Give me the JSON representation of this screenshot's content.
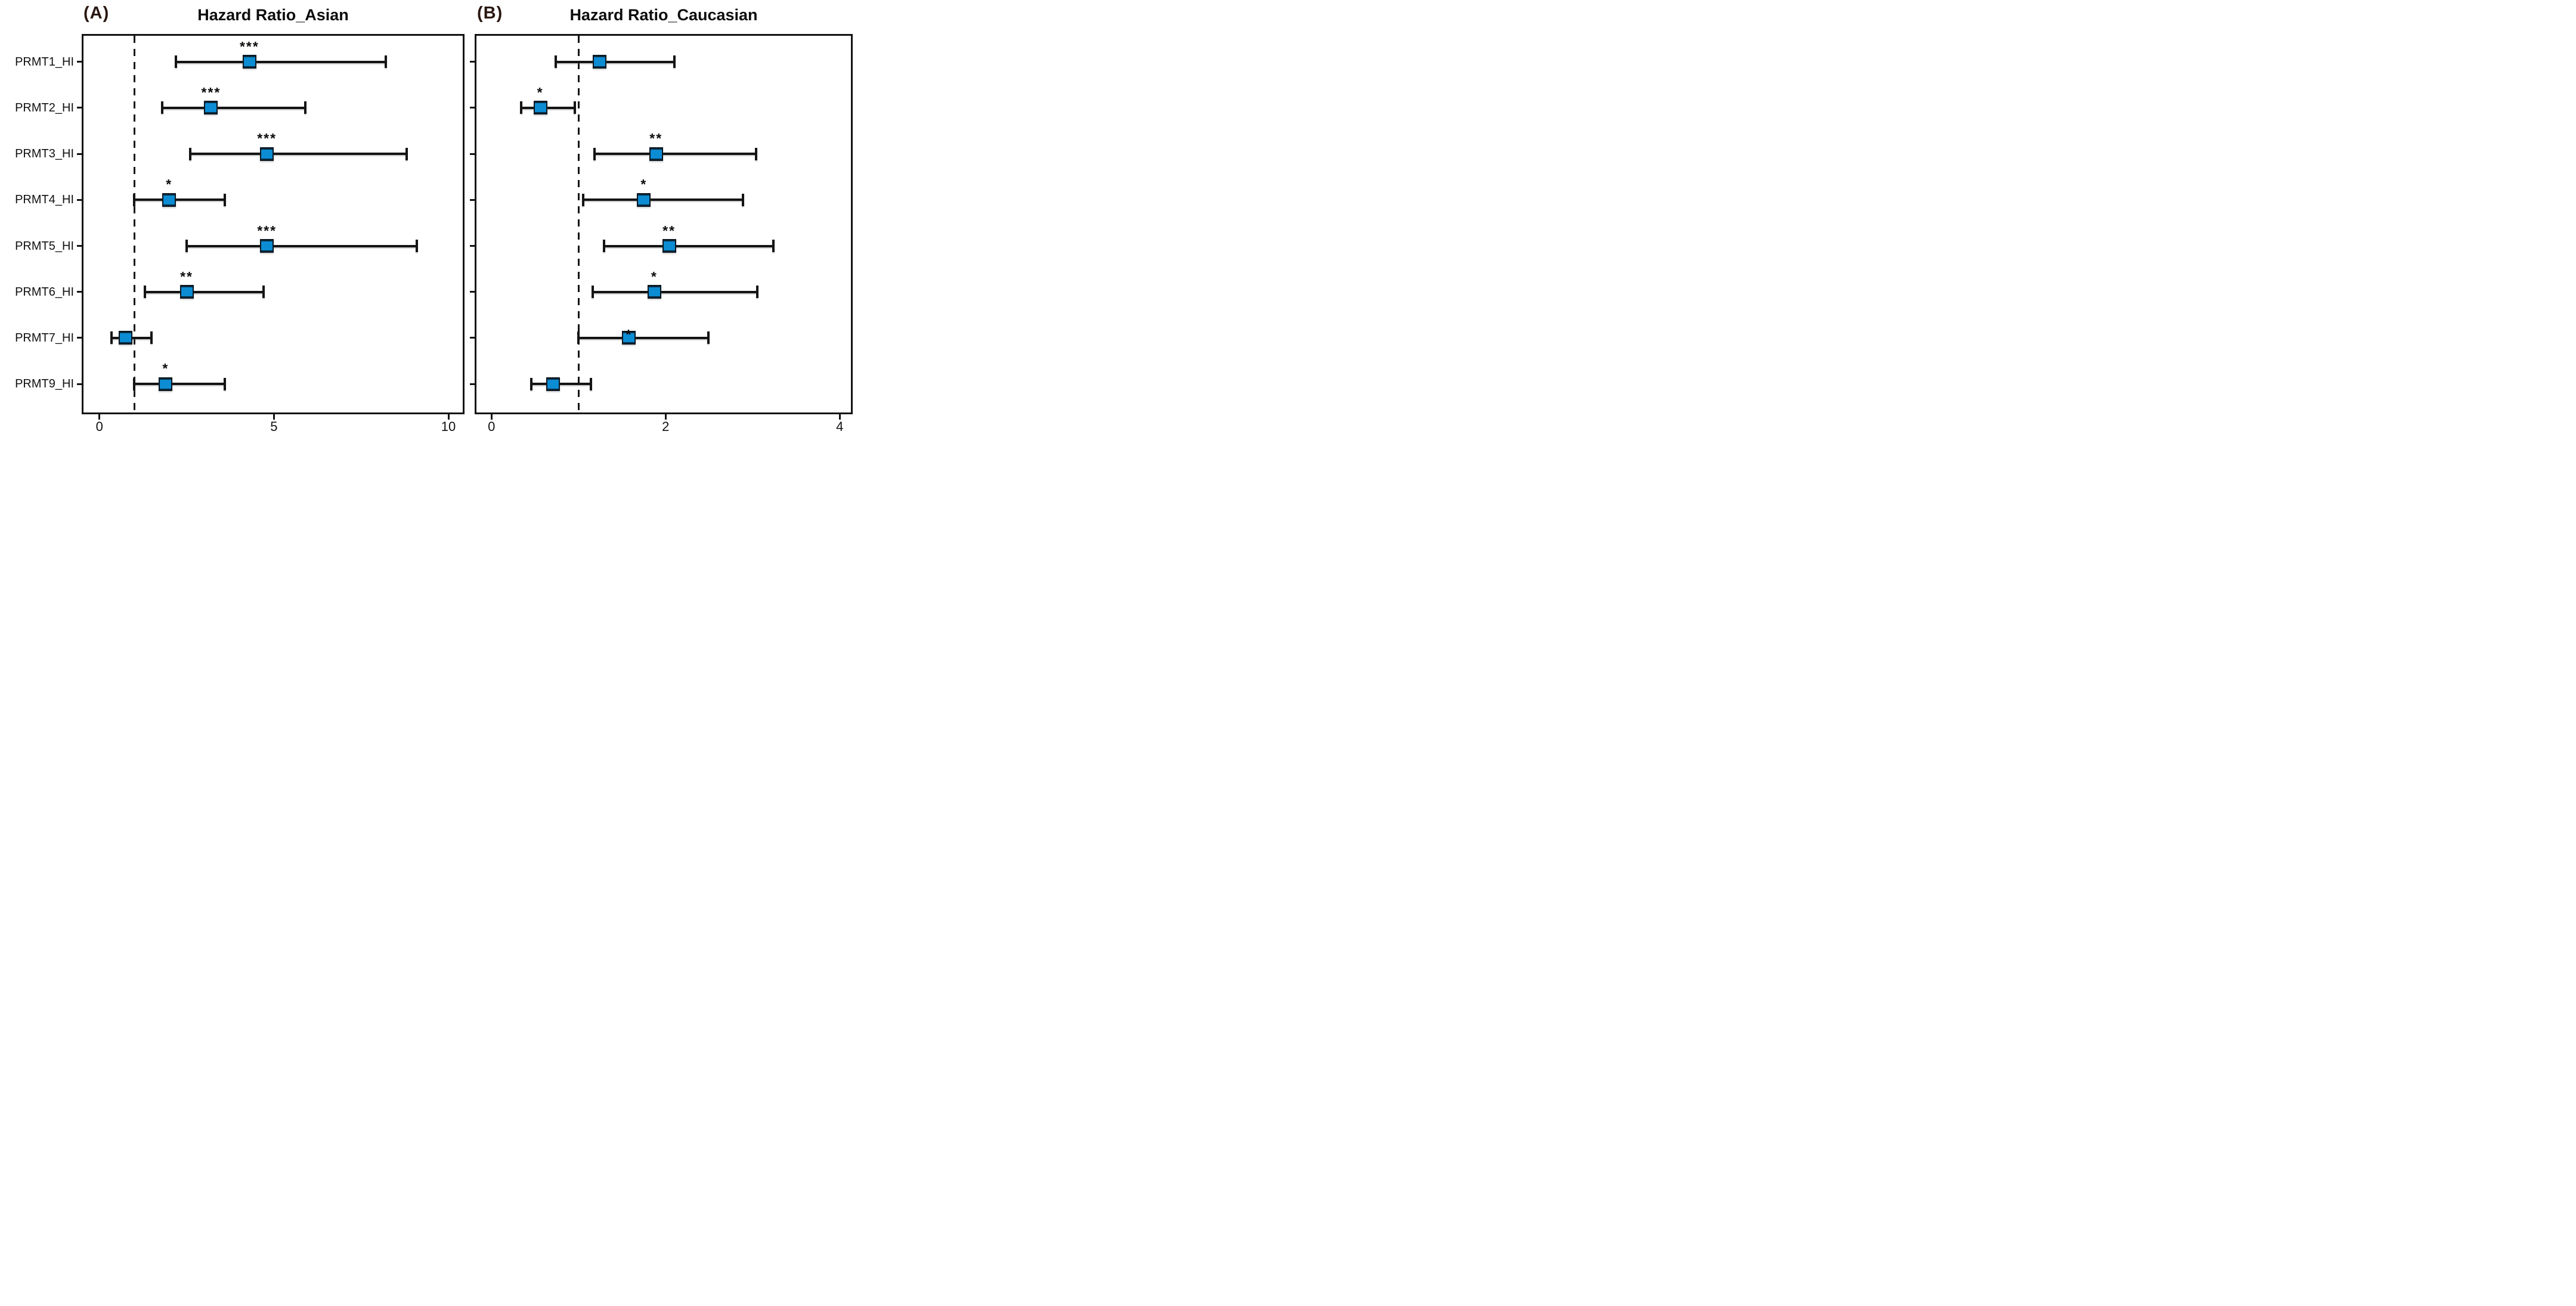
{
  "figure": {
    "kind": "forest plot of hazard ratios with 95% confidence intervals",
    "background": "#ffffff"
  },
  "colors": {
    "marker_fill": "#0b8cd3",
    "marker_border": "#0a1620",
    "line": "#141414",
    "panel_tag_text": "#2a1711",
    "title_text": "#0d0d0d",
    "reference_line": "#141414"
  },
  "y_labels": [
    "PRMT1_HI",
    "PRMT2_HI",
    "PRMT3_HI",
    "PRMT4_HI",
    "PRMT5_HI",
    "PRMT6_HI",
    "PRMT7_HI",
    "PRMT9_HI"
  ],
  "chart_data": [
    {
      "type": "scatter",
      "subtype": "forest-errorbar",
      "panel_tag": "(A)",
      "title": "Hazard Ratio_Asian",
      "orientation": "horizontal",
      "grid": false,
      "legend": "none",
      "categories": [
        "PRMT1_HI",
        "PRMT2_HI",
        "PRMT3_HI",
        "PRMT4_HI",
        "PRMT5_HI",
        "PRMT6_HI",
        "PRMT7_HI",
        "PRMT9_HI"
      ],
      "series": [
        {
          "name": "hazard_ratio",
          "values": [
            4.3,
            3.2,
            4.8,
            2.0,
            4.8,
            2.5,
            0.75,
            1.9
          ]
        },
        {
          "name": "ci_low",
          "values": [
            2.2,
            1.8,
            2.6,
            1.0,
            2.5,
            1.3,
            0.35,
            1.0
          ]
        },
        {
          "name": "ci_high",
          "values": [
            8.2,
            5.9,
            8.8,
            3.6,
            9.1,
            4.7,
            1.5,
            3.6
          ]
        },
        {
          "name": "significance",
          "values": [
            "***",
            "***",
            "***",
            "*",
            "***",
            "**",
            "",
            "*"
          ]
        }
      ],
      "xlim": [
        0,
        10
      ],
      "x_ticks": [
        0,
        5,
        10
      ],
      "reference_line_x": 1
    },
    {
      "type": "scatter",
      "subtype": "forest-errorbar",
      "panel_tag": "(B)",
      "title": "Hazard Ratio_Caucasian",
      "orientation": "horizontal",
      "grid": false,
      "legend": "none",
      "categories": [
        "PRMT1_HI",
        "PRMT2_HI",
        "PRMT3_HI",
        "PRMT4_HI",
        "PRMT5_HI",
        "PRMT6_HI",
        "PRMT7_HI",
        "PRMT9_HI"
      ],
      "series": [
        {
          "name": "hazard_ratio",
          "values": [
            1.24,
            0.56,
            1.89,
            1.75,
            2.04,
            1.87,
            1.58,
            0.71
          ]
        },
        {
          "name": "ci_low",
          "values": [
            0.74,
            0.34,
            1.18,
            1.05,
            1.29,
            1.16,
            1.0,
            0.46
          ]
        },
        {
          "name": "ci_high",
          "values": [
            2.1,
            0.96,
            3.04,
            2.89,
            3.24,
            3.05,
            2.49,
            1.14
          ]
        },
        {
          "name": "significance",
          "values": [
            "",
            "*",
            "**",
            "*",
            "**",
            "*",
            "*",
            ""
          ]
        }
      ],
      "star_on_marker_rows": [
        6
      ],
      "xlim": [
        0,
        4
      ],
      "x_ticks": [
        0,
        2,
        4
      ],
      "reference_line_x": 1
    }
  ]
}
